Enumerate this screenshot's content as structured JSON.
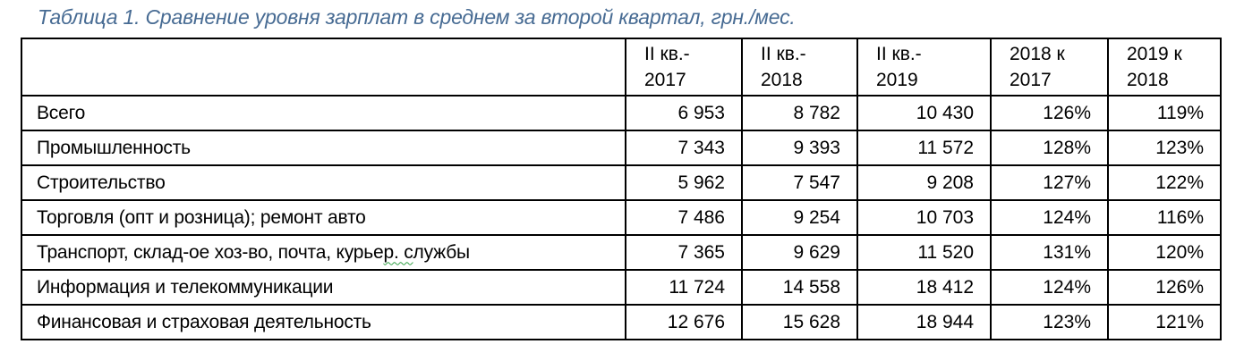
{
  "title": "Таблица 1. Сравнение уровня зарплат в среднем за второй квартал, грн./мес.",
  "colors": {
    "caption": "#476B93",
    "border": "#000000",
    "squiggle_green": "#2FA043"
  },
  "table": {
    "headers": [
      "",
      "II кв.-\n2017",
      "II кв.-\n2018",
      "II кв.-\n2019",
      "2018 к\n2017",
      "2019 к\n2018"
    ],
    "rows": [
      {
        "label": "Всего",
        "values": [
          "6 953",
          "8 782",
          "10 430",
          "126%",
          "119%"
        ]
      },
      {
        "label": "Промышленность",
        "values": [
          "7 343",
          "9 393",
          "11 572",
          "128%",
          "123%"
        ]
      },
      {
        "label": "Строительство",
        "values": [
          "5 962",
          "7 547",
          "9 208",
          "127%",
          "122%"
        ]
      },
      {
        "label": "Торговля (опт и розница); ремонт авто",
        "values": [
          "7 486",
          "9 254",
          "10 703",
          "124%",
          "116%"
        ]
      },
      {
        "label": "Транспорт, склад-ое хоз-во, почта, курьер. службы",
        "squiggle_range": [
          40,
          44
        ],
        "values": [
          "7 365",
          "9 629",
          "11 520",
          "131%",
          "120%"
        ]
      },
      {
        "label": "Информация и телекоммуникации",
        "values": [
          "11 724",
          "14 558",
          "18 412",
          "124%",
          "126%"
        ]
      },
      {
        "label": "Финансовая и страховая деятельность",
        "values": [
          "12 676",
          "15 628",
          "18 944",
          "123%",
          "121%"
        ]
      }
    ]
  },
  "chart_data": {
    "type": "table",
    "title": "Таблица 1. Сравнение уровня зарплат в среднем за второй квартал, грн./мес.",
    "units": "грн./мес.",
    "columns": [
      "",
      "II кв.-2017",
      "II кв.-2018",
      "II кв.-2019",
      "2018 к 2017",
      "2019 к 2018"
    ],
    "rows": [
      [
        "Всего",
        6953,
        8782,
        10430,
        "126%",
        "119%"
      ],
      [
        "Промышленность",
        7343,
        9393,
        11572,
        "128%",
        "123%"
      ],
      [
        "Строительство",
        5962,
        7547,
        9208,
        "127%",
        "122%"
      ],
      [
        "Торговля (опт и розница); ремонт авто",
        7486,
        9254,
        10703,
        "124%",
        "116%"
      ],
      [
        "Транспорт, склад-ое хоз-во, почта, курьер. службы",
        7365,
        9629,
        11520,
        "131%",
        "120%"
      ],
      [
        "Информация и телекоммуникации",
        11724,
        14558,
        18412,
        "124%",
        "126%"
      ],
      [
        "Финансовая и страховая деятельность",
        12676,
        15628,
        18944,
        "123%",
        "121%"
      ]
    ]
  }
}
